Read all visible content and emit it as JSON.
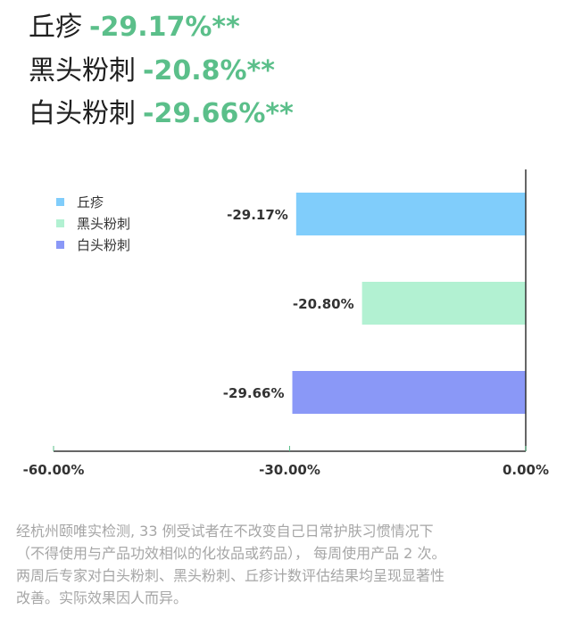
{
  "headlines": [
    {
      "name": "丘疹",
      "value": "-29.17%**"
    },
    {
      "name": "黑头粉刺",
      "value": "-20.8%**"
    },
    {
      "name": "白头粉刺",
      "value": "-29.66%**"
    }
  ],
  "chart_data": {
    "type": "bar",
    "orientation": "horizontal",
    "categories": [
      "丘疹",
      "黑头粉刺",
      "白头粉刺"
    ],
    "values": [
      -29.17,
      -20.8,
      -29.66
    ],
    "data_labels": [
      "-29.17%",
      "-20.80%",
      "-29.66%"
    ],
    "colors": [
      "#80cdfb",
      "#b2f1d2",
      "#8a98f7"
    ],
    "legend": [
      "丘疹",
      "黑头粉刺",
      "白头粉刺"
    ],
    "legend_position": "top-left",
    "xlim": [
      -60,
      0
    ],
    "xticks": [
      -60,
      -30,
      0
    ],
    "xtick_labels": [
      "-60.00%",
      "-30.00%",
      "0.00%"
    ],
    "grid": false
  },
  "footnote": {
    "line1": "经杭州颐唯实检测, 33 例受试者在不改变自己日常护肤习惯情况下",
    "line2": "（不得使用与产品功效相似的化妆品或药品），  每周使用产品 2 次。",
    "line3": "两周后专家对白头粉刺、黑头粉刺、丘疹计数评估结果均呈现显著性",
    "line4": "改善。实际效果因人而异。"
  }
}
